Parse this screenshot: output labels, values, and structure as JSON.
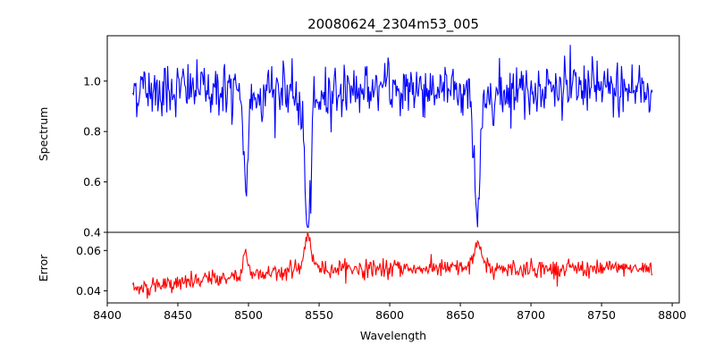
{
  "chart_data": [
    {
      "type": "line",
      "title": "20080624_2304m53_005",
      "ylabel": "Spectrum",
      "xlabel": "",
      "xlim": [
        8400,
        8805
      ],
      "ylim": [
        0.4,
        1.18
      ],
      "yticks": [
        0.4,
        0.6,
        0.8,
        1.0
      ],
      "yticklabels": [
        "0.4",
        "0.6",
        "0.8",
        "1.0"
      ],
      "xticks": [
        8400,
        8450,
        8500,
        8550,
        8600,
        8650,
        8700,
        8750,
        8800
      ],
      "color": "#0000ff",
      "features": [
        {
          "center": 8498.0,
          "depth": 0.36,
          "width": 1.6
        },
        {
          "center": 8542.1,
          "depth": 0.55,
          "width": 2.0
        },
        {
          "center": 8662.1,
          "depth": 0.48,
          "width": 1.8
        }
      ],
      "x_range": [
        8418,
        8786
      ],
      "continuum": 0.97
    },
    {
      "type": "line",
      "title": "",
      "ylabel": "Error",
      "xlabel": "Wavelength",
      "xlim": [
        8400,
        8805
      ],
      "ylim": [
        0.034,
        0.069
      ],
      "yticks": [
        0.04,
        0.06
      ],
      "yticklabels": [
        "0.04",
        "0.06"
      ],
      "xticks": [
        8400,
        8450,
        8500,
        8550,
        8600,
        8650,
        8700,
        8750,
        8800
      ],
      "xticklabels": [
        "8400",
        "8450",
        "8500",
        "8550",
        "8600",
        "8650",
        "8700",
        "8750",
        "8800"
      ],
      "color": "#ff0000",
      "x_range": [
        8418,
        8786
      ],
      "baseline": 0.05
    }
  ]
}
